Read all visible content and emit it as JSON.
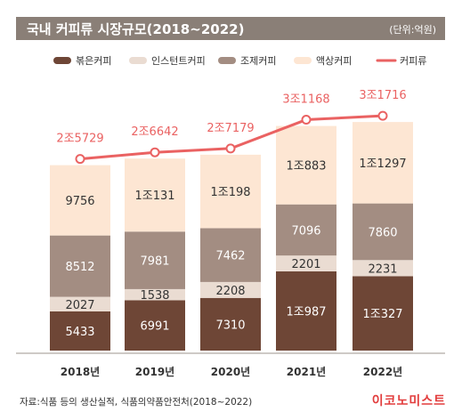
{
  "title": "국내 커피류 시장규모(2018~2022)",
  "unit_note": "(단위:억원)",
  "source": "자료:식품 등의 생산실적, 식품의약품안전처(2018~2022)",
  "brand": "이코노미스트",
  "colors": {
    "brewed": "#6e4636",
    "instant": "#eadcd2",
    "formulated": "#a38d82",
    "liquid": "#fde6d3",
    "total": "#ea6262"
  },
  "chart_data": {
    "type": "bar",
    "stacked": true,
    "categories": [
      "2018년",
      "2019년",
      "2020년",
      "2021년",
      "2022년"
    ],
    "series": [
      {
        "name": "볶은커피",
        "values": [
          5433,
          6991,
          7310,
          10987,
          10327
        ],
        "labels": [
          "5433",
          "6991",
          "7310",
          "1조987",
          "1조327"
        ]
      },
      {
        "name": "인스턴트커피",
        "values": [
          2027,
          1538,
          2208,
          2201,
          2231
        ],
        "labels": [
          "2027",
          "1538",
          "2208",
          "2201",
          "2231"
        ]
      },
      {
        "name": "조제커피",
        "values": [
          8512,
          7981,
          7462,
          7096,
          7860
        ],
        "labels": [
          "8512",
          "7981",
          "7462",
          "7096",
          "7860"
        ]
      },
      {
        "name": "액상커피",
        "values": [
          9756,
          10131,
          10198,
          10883,
          11297
        ],
        "labels": [
          "9756",
          "1조131",
          "1조198",
          "1조883",
          "1조1297"
        ]
      }
    ],
    "line": {
      "name": "커피류",
      "values": [
        25729,
        26642,
        27179,
        31168,
        31716
      ],
      "labels": [
        "2조5729",
        "2조6642",
        "2조7179",
        "3조1168",
        "3조1716"
      ]
    }
  }
}
